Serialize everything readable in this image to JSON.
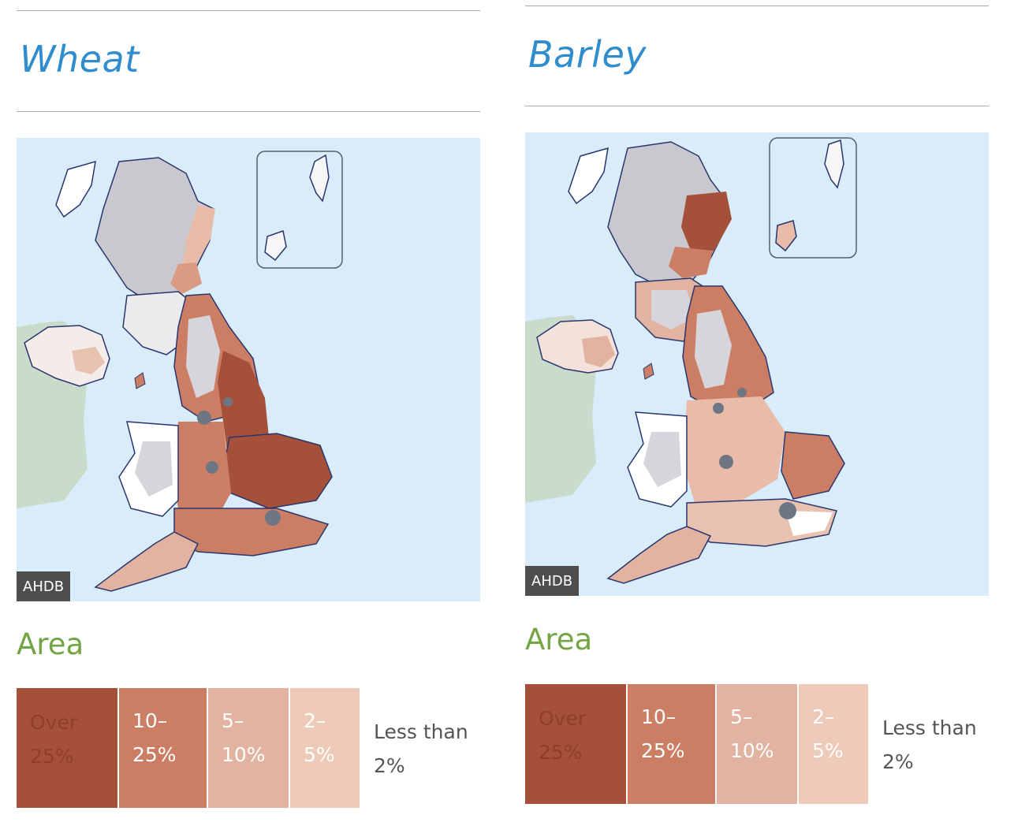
{
  "panels": [
    {
      "title": "Wheat",
      "credit": "AHDB",
      "legend_title": "Area",
      "legend": [
        {
          "line1": "Over",
          "line2": "25%",
          "color": "#a55038"
        },
        {
          "line1": "10–",
          "line2": "25%",
          "color": "#cc7e64"
        },
        {
          "line1": "5–",
          "line2": "10%",
          "color": "#e2b3a0"
        },
        {
          "line1": "2–",
          "line2": "5%",
          "color": "#eecab9"
        },
        {
          "line1": "Less than",
          "line2": "2%",
          "color": "#ffffff"
        }
      ]
    },
    {
      "title": "Barley",
      "credit": "AHDB",
      "legend_title": "Area",
      "legend": [
        {
          "line1": "Over",
          "line2": "25%",
          "color": "#a55038"
        },
        {
          "line1": "10–",
          "line2": "25%",
          "color": "#cc7e64"
        },
        {
          "line1": "5–",
          "line2": "10%",
          "color": "#e2b3a0"
        },
        {
          "line1": "2–",
          "line2": "5%",
          "color": "#eecab9"
        },
        {
          "line1": "Less than",
          "line2": "2%",
          "color": "#ffffff"
        }
      ]
    }
  ],
  "colors": {
    "sea": "#d8ecfa",
    "ireland": "#c9dccb",
    "upland": "#c9c8ce",
    "urban": "#6e7683",
    "coast": "#2a3570",
    "title": "#2f8ccd",
    "legend_title": "#74a544"
  }
}
